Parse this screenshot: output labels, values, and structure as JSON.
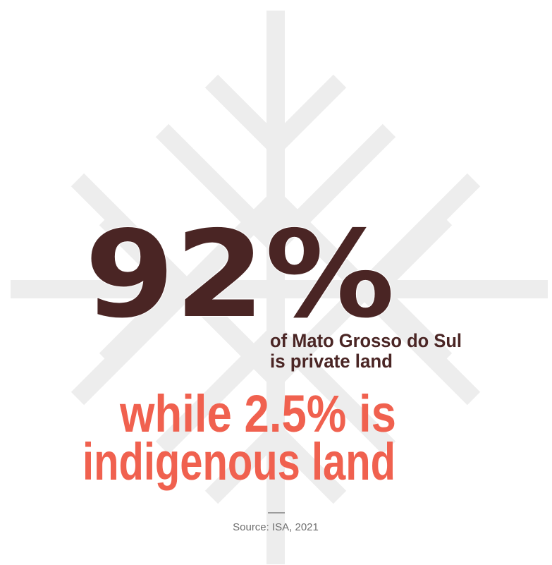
{
  "headline": {
    "figure": "92%",
    "line1": "of Mato Grosso do Sul",
    "line2": "is private land"
  },
  "contrast": {
    "line1": "while 2.5% is",
    "line2": "indigenous land"
  },
  "source": "Source: ISA, 2021"
}
